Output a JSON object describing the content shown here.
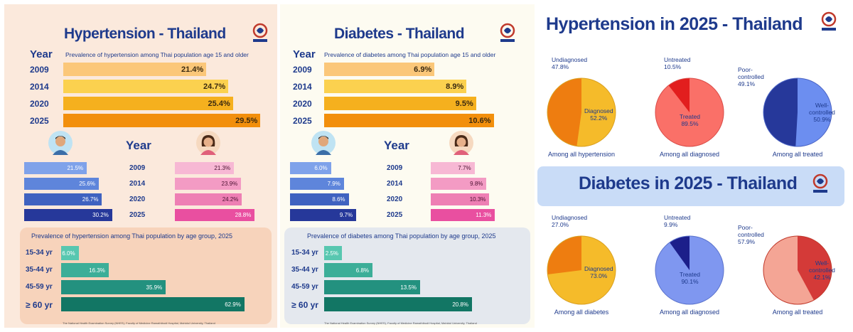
{
  "hypertension": {
    "title": "Hypertension - Thailand",
    "subtitle": "Prevalence of  hypertension among Thai population age 15 and older",
    "year_header": "Year",
    "years": [
      "2009",
      "2014",
      "2020",
      "2025"
    ],
    "overall": [
      "21.4%",
      "24.7%",
      "25.4%",
      "29.5%"
    ],
    "overall_values": [
      21.4,
      24.7,
      25.4,
      29.5
    ],
    "male": [
      "21.5%",
      "25.6%",
      "26.7%",
      "30.2%"
    ],
    "male_values": [
      21.5,
      25.6,
      26.7,
      30.2
    ],
    "female": [
      "21.3%",
      "23.9%",
      "24.2%",
      "28.8%"
    ],
    "female_values": [
      21.3,
      23.9,
      24.2,
      28.8
    ],
    "age_title": "Prevalence of hypertension among Thai population by age group, 2025",
    "age_labels": [
      "15-34 yr",
      "35-44 yr",
      "45-59 yr",
      "≥ 60 yr"
    ],
    "age": [
      "6.0%",
      "16.3%",
      "35.9%",
      "62.9%"
    ],
    "age_values": [
      6.0,
      16.3,
      35.9,
      62.9
    ],
    "footer": "The National Health Examination Survey (NHES), Faculty of Medicine Ramathibodi Hospital, Mahidol University, Thailand"
  },
  "diabetes": {
    "title": "Diabetes - Thailand",
    "subtitle": "Prevalence of  diabetes among Thai population age 15 and older",
    "year_header": "Year",
    "years": [
      "2009",
      "2014",
      "2020",
      "2025"
    ],
    "overall": [
      "6.9%",
      "8.9%",
      "9.5%",
      "10.6%"
    ],
    "overall_values": [
      6.9,
      8.9,
      9.5,
      10.6
    ],
    "male": [
      "6.0%",
      "7.9%",
      "8.6%",
      "9.7%"
    ],
    "male_values": [
      6.0,
      7.9,
      8.6,
      9.7
    ],
    "female": [
      "7.7%",
      "9.8%",
      "10.3%",
      "11.3%"
    ],
    "female_values": [
      7.7,
      9.8,
      10.3,
      11.3
    ],
    "age_title": "Prevalence of  diabetes among Thai population by age group, 2025",
    "age_labels": [
      "15-34 yr",
      "35-44 yr",
      "45-59 yr",
      "≥ 60 yr"
    ],
    "age": [
      "2.5%",
      "6.8%",
      "13.5%",
      "20.8%"
    ],
    "age_values": [
      2.5,
      6.8,
      13.5,
      20.8
    ],
    "footer": "The National Health Examination Survey (NHES), Faculty of Medicine Ramathibodi Hospital, Mahidol University, Thailand"
  },
  "ht2025": {
    "title": "Hypertension in 2025 - Thailand",
    "pies": [
      {
        "outer_label": "Undiagnosed\n47.8%",
        "inner_label": "Diagnosed\n52.2%",
        "caption": "Among all hypertension",
        "value": 52.2
      },
      {
        "outer_label": "Untreated\n10.5%",
        "inner_label": "Treated\n89.5%",
        "caption": "Among all diagnosed",
        "value": 89.5
      },
      {
        "outer_label": "Poor-\ncontrolled\n49.1%",
        "inner_label": "Well-\ncontrolled\n50.9%",
        "caption": "Among all treated",
        "value": 50.9
      }
    ]
  },
  "dm2025": {
    "title": "Diabetes in 2025 - Thailand",
    "pies": [
      {
        "outer_label": "Undiagnosed\n27.0%",
        "inner_label": "Diagnosed\n73.0%",
        "caption": "Among all diabetes",
        "value": 73.0
      },
      {
        "outer_label": "Untreated\n9.9%",
        "inner_label": "Treated\n90.1%",
        "caption": "Among all diagnosed",
        "value": 90.1
      },
      {
        "outer_label": "Poor-\ncontrolled\n57.9%",
        "inner_label": "Well-\ncontrolled\n42.1%",
        "caption": "Among all treated",
        "value": 42.1
      }
    ]
  },
  "chart_data": [
    {
      "type": "bar",
      "title": "Hypertension - Thailand",
      "categories": [
        "2009",
        "2014",
        "2020",
        "2025"
      ],
      "values": [
        21.4,
        24.7,
        25.4,
        29.5
      ]
    },
    {
      "type": "bar",
      "title": "Hypertension - Thailand (by sex)",
      "categories": [
        "2009",
        "2014",
        "2020",
        "2025"
      ],
      "series": [
        {
          "name": "Male",
          "values": [
            21.5,
            25.6,
            26.7,
            30.2
          ]
        },
        {
          "name": "Female",
          "values": [
            21.3,
            23.9,
            24.2,
            28.8
          ]
        }
      ]
    },
    {
      "type": "bar",
      "title": "Prevalence of hypertension among Thai population by age group, 2025",
      "categories": [
        "15-34 yr",
        "35-44 yr",
        "45-59 yr",
        "≥ 60 yr"
      ],
      "values": [
        6.0,
        16.3,
        35.9,
        62.9
      ]
    },
    {
      "type": "bar",
      "title": "Diabetes - Thailand",
      "categories": [
        "2009",
        "2014",
        "2020",
        "2025"
      ],
      "values": [
        6.9,
        8.9,
        9.5,
        10.6
      ]
    },
    {
      "type": "bar",
      "title": "Diabetes - Thailand (by sex)",
      "categories": [
        "2009",
        "2014",
        "2020",
        "2025"
      ],
      "series": [
        {
          "name": "Male",
          "values": [
            6.0,
            7.9,
            8.6,
            9.7
          ]
        },
        {
          "name": "Female",
          "values": [
            7.7,
            9.8,
            10.3,
            11.3
          ]
        }
      ]
    },
    {
      "type": "bar",
      "title": "Prevalence of diabetes among Thai population by age group, 2025",
      "categories": [
        "15-34 yr",
        "35-44 yr",
        "45-59 yr",
        "≥ 60 yr"
      ],
      "values": [
        2.5,
        6.8,
        13.5,
        20.8
      ]
    },
    {
      "type": "pie",
      "title": "Hypertension in 2025 - Among all hypertension",
      "labels": [
        "Undiagnosed",
        "Diagnosed"
      ],
      "values": [
        47.8,
        52.2
      ]
    },
    {
      "type": "pie",
      "title": "Hypertension in 2025 - Among all diagnosed",
      "labels": [
        "Untreated",
        "Treated"
      ],
      "values": [
        10.5,
        89.5
      ]
    },
    {
      "type": "pie",
      "title": "Hypertension in 2025 - Among all treated",
      "labels": [
        "Poor-controlled",
        "Well-controlled"
      ],
      "values": [
        49.1,
        50.9
      ]
    },
    {
      "type": "pie",
      "title": "Diabetes in 2025 - Among all diabetes",
      "labels": [
        "Undiagnosed",
        "Diagnosed"
      ],
      "values": [
        27.0,
        73.0
      ]
    },
    {
      "type": "pie",
      "title": "Diabetes in 2025 - Among all diagnosed",
      "labels": [
        "Untreated",
        "Treated"
      ],
      "values": [
        9.9,
        90.1
      ]
    },
    {
      "type": "pie",
      "title": "Diabetes in 2025 - Among all treated",
      "labels": [
        "Poor-controlled",
        "Well-controlled"
      ],
      "values": [
        57.9,
        42.1
      ]
    }
  ]
}
